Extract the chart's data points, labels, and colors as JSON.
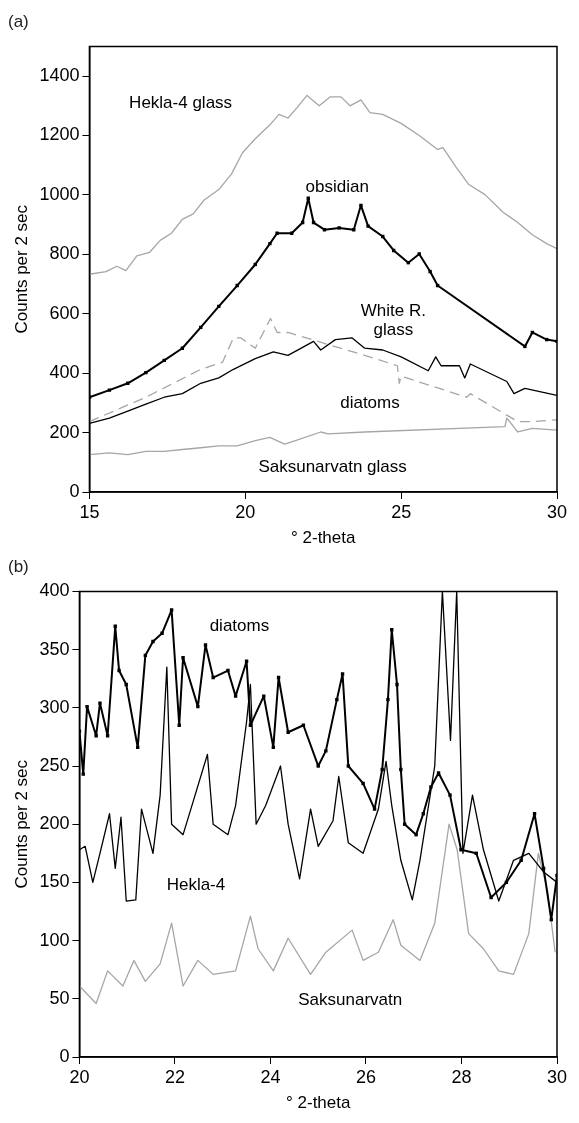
{
  "chart_data": [
    {
      "type": "line",
      "title": "(a)",
      "xlabel": "° 2-theta",
      "ylabel": "Counts per 2 sec",
      "xlim": [
        15,
        30
      ],
      "xticks": [
        15,
        20,
        25,
        30
      ],
      "ylim": [
        0,
        1500
      ],
      "yticks": [
        0,
        200,
        400,
        600,
        800,
        1000,
        1200,
        1400
      ],
      "grid": false,
      "legend": false,
      "marker": "none",
      "line_style": "solid",
      "series": [
        {
          "name": "Hekla-4 glass",
          "color": "#a6a6a6",
          "x": [
            15,
            15.53,
            15.88,
            16.17,
            16.52,
            16.93,
            17.28,
            17.63,
            17.98,
            18.33,
            18.68,
            19.15,
            19.56,
            19.91,
            20.32,
            20.79,
            21.08,
            21.37,
            21.66,
            21.98,
            22.37,
            22.72,
            23.07,
            23.36,
            23.71,
            24.0,
            24.41,
            25.0,
            25.58,
            26.17,
            26.34,
            26.75,
            27.16,
            27.69,
            28.27,
            28.74,
            29.21,
            29.67,
            30
          ],
          "values": [
            733,
            742,
            760,
            745,
            795,
            807,
            848,
            871,
            918,
            936,
            983,
            1018,
            1071,
            1142,
            1189,
            1236,
            1271,
            1259,
            1294,
            1335,
            1300,
            1330,
            1330,
            1300,
            1320,
            1277,
            1271,
            1241,
            1200,
            1153,
            1159,
            1095,
            1036,
            1001,
            942,
            907,
            866,
            836,
            819
          ]
        },
        {
          "name": "obsidian",
          "color": "#000000",
          "marker": "square",
          "x": [
            15,
            15.64,
            16.23,
            16.81,
            17.4,
            17.98,
            18.57,
            19.15,
            19.74,
            20.32,
            20.79,
            21.02,
            21.49,
            21.84,
            22.02,
            22.19,
            22.54,
            23.01,
            23.48,
            23.71,
            23.94,
            24.41,
            24.76,
            25.23,
            25.58,
            25.93,
            26.17,
            28.97,
            29.21,
            29.67,
            30
          ],
          "values": [
            319,
            343,
            366,
            402,
            443,
            484,
            554,
            625,
            695,
            766,
            836,
            871,
            871,
            907,
            989,
            907,
            883,
            889,
            883,
            965,
            895,
            860,
            813,
            772,
            801,
            742,
            695,
            490,
            537,
            513,
            507
          ]
        },
        {
          "name": "White R. glass",
          "color": "#000000",
          "x": [
            15,
            15.64,
            16.23,
            16.81,
            17.4,
            17.98,
            18.57,
            19.15,
            19.62,
            20.32,
            20.9,
            21.37,
            22.19,
            22.42,
            22.89,
            23.42,
            23.83,
            24.41,
            25.0,
            25.87,
            26.11,
            26.28,
            26.87,
            27.04,
            27.22,
            28.39,
            28.62,
            28.97,
            30
          ],
          "values": [
            231,
            249,
            272,
            296,
            319,
            331,
            366,
            384,
            413,
            449,
            472,
            460,
            507,
            478,
            513,
            519,
            484,
            478,
            455,
            408,
            455,
            425,
            425,
            384,
            431,
            372,
            331,
            349,
            325
          ]
        },
        {
          "name": "diatoms",
          "color": "#a6a6a6",
          "line_style": "dashed",
          "x": [
            15,
            16.81,
            18.57,
            19.27,
            19.62,
            19.85,
            20.32,
            20.55,
            20.81,
            21.02,
            21.37,
            23.83,
            24.88,
            24.94,
            25.0,
            27.1,
            27.22,
            28.74,
            29.21,
            30
          ],
          "values": [
            237,
            319,
            413,
            437,
            519,
            519,
            484,
            531,
            584,
            537,
            537,
            460,
            425,
            366,
            390,
            319,
            331,
            237,
            237,
            243
          ]
        },
        {
          "name": "Saksunarvatn glass",
          "color": "#a6a6a6",
          "x": [
            15,
            15.64,
            16.23,
            16.81,
            17.4,
            17.98,
            18.57,
            19.15,
            19.74,
            20.32,
            20.79,
            21.26,
            21.61,
            22.42,
            22.66,
            23.83,
            28.33,
            28.39,
            28.74,
            29.21,
            30
          ],
          "values": [
            126,
            132,
            126,
            137,
            137,
            143,
            149,
            155,
            155,
            173,
            184,
            161,
            173,
            202,
            196,
            202,
            220,
            249,
            202,
            214,
            208
          ]
        }
      ]
    },
    {
      "type": "line",
      "title": "(b)",
      "xlabel": "° 2-theta",
      "ylabel": "Counts per 2 sec",
      "xlim": [
        20,
        30
      ],
      "xticks": [
        20,
        22,
        24,
        26,
        28,
        30
      ],
      "ylim": [
        0,
        400
      ],
      "yticks": [
        0,
        50,
        100,
        150,
        200,
        250,
        300,
        350,
        400
      ],
      "grid": false,
      "legend": false,
      "marker": "none",
      "line_style": "solid",
      "series": [
        {
          "name": "diatoms",
          "color": "#000000",
          "marker": "square",
          "x": [
            20,
            20.08,
            20.16,
            20.35,
            20.43,
            20.59,
            20.75,
            20.83,
            20.98,
            21.22,
            21.38,
            21.54,
            21.73,
            21.93,
            22.09,
            22.17,
            22.48,
            22.64,
            22.8,
            23.11,
            23.27,
            23.5,
            23.58,
            23.86,
            24.06,
            24.17,
            24.37,
            24.69,
            25.0,
            25.16,
            25.39,
            25.51,
            25.63,
            25.94,
            26.18,
            26.34,
            26.46,
            26.54,
            26.65,
            26.73,
            26.81,
            27.05,
            27.2,
            27.36,
            27.52,
            27.76,
            27.99,
            28.31,
            28.62,
            28.94,
            29.25,
            29.53,
            29.72,
            29.88,
            30
          ],
          "values": [
            280,
            243,
            301,
            276,
            304,
            276,
            370,
            332,
            320,
            266,
            345,
            357,
            364,
            384,
            285,
            343,
            301,
            354,
            326,
            332,
            310,
            340,
            285,
            310,
            266,
            326,
            279,
            285,
            250,
            263,
            307,
            329,
            250,
            235,
            213,
            247,
            307,
            367,
            320,
            247,
            200,
            191,
            209,
            232,
            244,
            225,
            178,
            175,
            137,
            150,
            169,
            209,
            162,
            118,
            156
          ]
        },
        {
          "name": "Hekla-4",
          "color": "#000000",
          "x": [
            20,
            20.12,
            20.28,
            20.43,
            20.63,
            20.75,
            20.87,
            20.98,
            21.18,
            21.3,
            21.54,
            21.69,
            21.83,
            21.93,
            22.17,
            22.4,
            22.68,
            22.8,
            23.11,
            23.27,
            23.5,
            23.58,
            23.7,
            23.9,
            24.21,
            24.37,
            24.61,
            24.84,
            25.0,
            25.31,
            25.43,
            25.63,
            25.94,
            26.26,
            26.42,
            26.54,
            26.73,
            26.97,
            27.13,
            27.44,
            27.6,
            27.77,
            27.9,
            28.03,
            28.23,
            28.46,
            28.78,
            29.09,
            29.41,
            29.72,
            30
          ],
          "values": [
            178,
            181,
            150,
            175,
            209,
            162,
            206,
            134,
            135,
            213,
            175,
            225,
            335,
            200,
            191,
            222,
            260,
            200,
            191,
            216,
            288,
            320,
            200,
            216,
            250,
            200,
            153,
            213,
            181,
            203,
            241,
            184,
            175,
            213,
            254,
            216,
            169,
            135,
            169,
            250,
            400,
            272,
            400,
            175,
            225,
            178,
            134,
            169,
            175,
            159,
            150
          ]
        },
        {
          "name": "Saksunarvatn",
          "color": "#a6a6a6",
          "x": [
            20,
            20.35,
            20.59,
            20.91,
            21.14,
            21.38,
            21.69,
            21.93,
            22.17,
            22.48,
            22.8,
            23.27,
            23.58,
            23.74,
            24.06,
            24.37,
            24.84,
            25.16,
            25.71,
            25.94,
            26.26,
            26.57,
            26.73,
            27.13,
            27.44,
            27.74,
            27.91,
            28.15,
            28.46,
            28.78,
            29.09,
            29.41,
            29.61,
            29.8,
            29.96
          ],
          "values": [
            61,
            46,
            74,
            61,
            83,
            65,
            80,
            115,
            61,
            83,
            71,
            74,
            121,
            93,
            74,
            102,
            71,
            90,
            109,
            83,
            90,
            118,
            96,
            83,
            115,
            200,
            178,
            106,
            93,
            74,
            71,
            106,
            175,
            143,
            90
          ]
        }
      ]
    }
  ]
}
